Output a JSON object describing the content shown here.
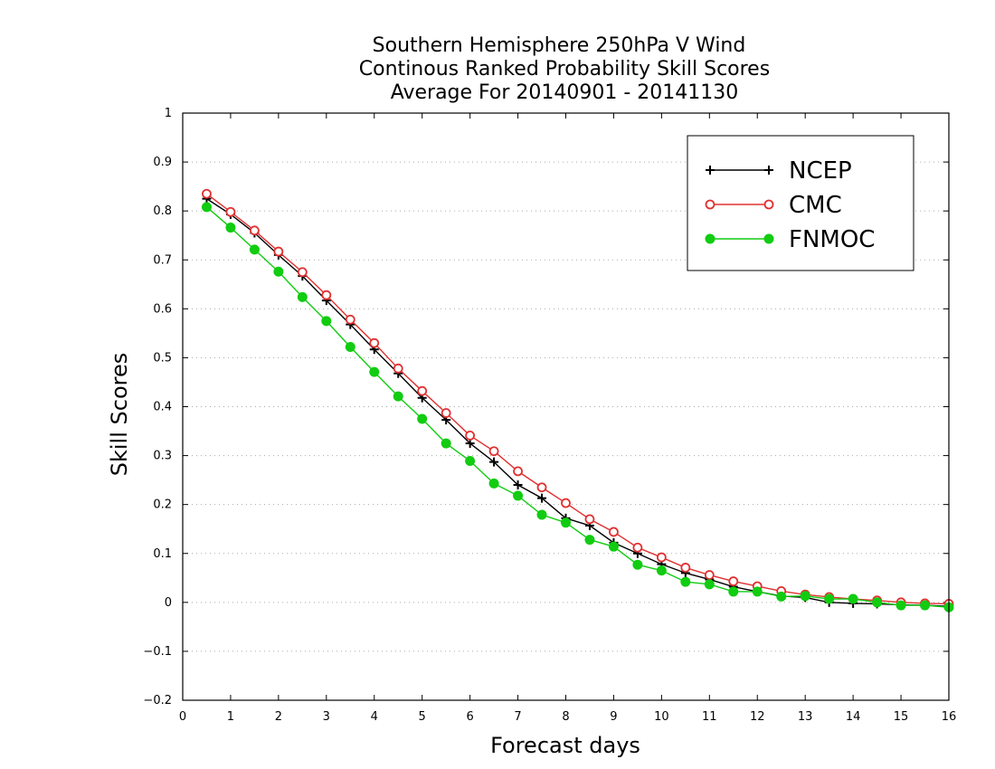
{
  "chart_data": {
    "type": "line",
    "title_lines": [
      "Southern Hemisphere 250hPa V Wind",
      "Continous Ranked Probability Skill Scores",
      "Average For 20140901 - 20141130"
    ],
    "xlabel": "Forecast days",
    "ylabel": "Skill Scores",
    "xlim": [
      0,
      16
    ],
    "ylim": [
      -0.2,
      1
    ],
    "x_ticks": [
      0,
      1,
      2,
      3,
      4,
      5,
      6,
      7,
      8,
      9,
      10,
      11,
      12,
      13,
      14,
      15,
      16
    ],
    "y_ticks": [
      -0.2,
      -0.1,
      0,
      0.1,
      0.2,
      0.3,
      0.4,
      0.5,
      0.6,
      0.7,
      0.8,
      0.9,
      1
    ],
    "x_tick_labels": [
      "0",
      "1",
      "2",
      "3",
      "4",
      "5",
      "6",
      "7",
      "8",
      "9",
      "10",
      "11",
      "12",
      "13",
      "14",
      "15",
      "16"
    ],
    "y_tick_labels": [
      "−0.2",
      "−0.1",
      "0",
      "0.1",
      "0.2",
      "0.3",
      "0.4",
      "0.5",
      "0.6",
      "0.7",
      "0.8",
      "0.9",
      "1"
    ],
    "grid": "horizontal dotted",
    "legend_position": "top-right",
    "x": [
      0.5,
      1,
      1.5,
      2,
      2.5,
      3,
      3.5,
      4,
      4.5,
      5,
      5.5,
      6,
      6.5,
      7,
      7.5,
      8,
      8.5,
      9,
      9.5,
      10,
      10.5,
      11,
      11.5,
      12,
      12.5,
      13,
      13.5,
      14,
      14.5,
      15,
      15.5,
      16
    ],
    "series": [
      {
        "name": "NCEP",
        "color": "#000000",
        "marker": "plus",
        "values": [
          0.825,
          0.793,
          0.755,
          0.71,
          0.667,
          0.617,
          0.568,
          0.517,
          0.468,
          0.418,
          0.373,
          0.325,
          0.287,
          0.24,
          0.213,
          0.172,
          0.157,
          0.122,
          0.1,
          0.078,
          0.06,
          0.047,
          0.032,
          0.022,
          0.013,
          0.01,
          0.0,
          -0.002,
          -0.003,
          -0.005,
          -0.006,
          -0.008
        ]
      },
      {
        "name": "CMC",
        "color": "#e03030",
        "marker": "open-circle",
        "values": [
          0.835,
          0.798,
          0.76,
          0.717,
          0.675,
          0.628,
          0.578,
          0.53,
          0.478,
          0.432,
          0.387,
          0.341,
          0.309,
          0.268,
          0.235,
          0.203,
          0.17,
          0.144,
          0.112,
          0.092,
          0.071,
          0.056,
          0.043,
          0.033,
          0.023,
          0.016,
          0.011,
          0.007,
          0.004,
          0.0,
          -0.002,
          -0.003
        ]
      },
      {
        "name": "FNMOC",
        "color": "#11cc11",
        "marker": "filled-circle",
        "values": [
          0.808,
          0.766,
          0.721,
          0.676,
          0.624,
          0.575,
          0.522,
          0.471,
          0.421,
          0.375,
          0.325,
          0.289,
          0.243,
          0.218,
          0.179,
          0.163,
          0.128,
          0.114,
          0.077,
          0.065,
          0.042,
          0.037,
          0.022,
          0.022,
          0.012,
          0.013,
          0.007,
          0.007,
          0.0,
          -0.006,
          -0.006,
          -0.01
        ]
      }
    ]
  }
}
